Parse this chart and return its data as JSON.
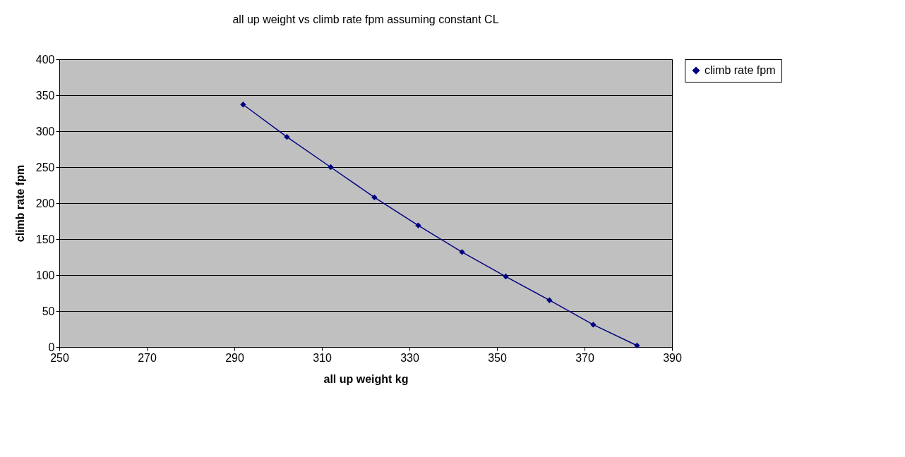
{
  "chart_data": {
    "type": "line",
    "title": "all up weight vs climb rate fpm assuming constant CL",
    "xlabel": "all up weight kg",
    "ylabel": "climb rate fpm",
    "x": [
      292,
      302,
      312,
      322,
      332,
      342,
      352,
      362,
      372,
      382
    ],
    "series": [
      {
        "name": "climb rate fpm",
        "color": "#000080",
        "values": [
          337,
          292,
          250,
          208,
          169,
          132,
          98,
          65,
          31,
          2
        ]
      }
    ],
    "xlim": [
      250,
      390
    ],
    "xticks": [
      250,
      270,
      290,
      310,
      330,
      350,
      370,
      390
    ],
    "ylim": [
      0,
      400
    ],
    "yticks": [
      0,
      50,
      100,
      150,
      200,
      250,
      300,
      350,
      400
    ],
    "grid": "y",
    "legend": "right",
    "marker": "diamond",
    "line_style": "solid"
  }
}
